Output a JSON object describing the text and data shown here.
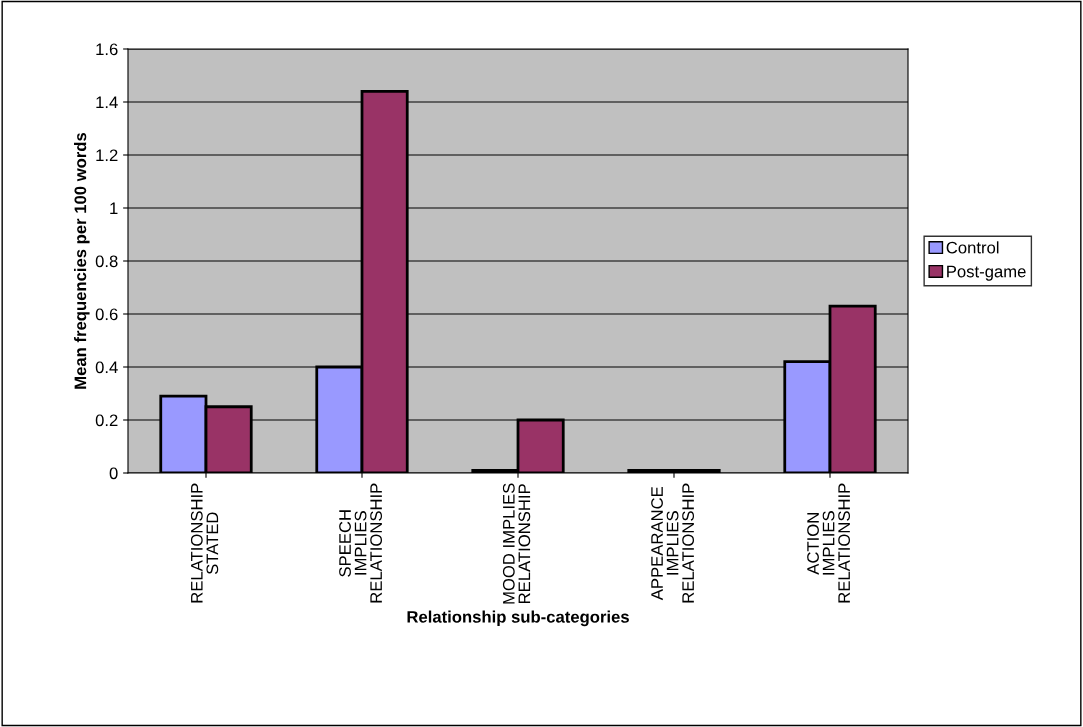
{
  "chart_data": {
    "type": "bar",
    "xlabel": "Relationship sub-categories",
    "ylabel": "Mean frequencies per 100 words",
    "categories": [
      "RELATIONSHIP\nSTATED",
      "SPEECH\nIMPLIES\nRELATIONSHIP",
      "MOOD IMPLIES\nRELATIONSHIP",
      "APPEARANCE\nIMPLIES\nRELATIONSHIP",
      "ACTION\nIMPLIES\nRELATIONSHIP"
    ],
    "series": [
      {
        "name": "Control",
        "color": "#9999ff",
        "values": [
          0.29,
          0.4,
          0.01,
          0.01,
          0.42
        ]
      },
      {
        "name": "Post-game",
        "color": "#993366",
        "values": [
          0.25,
          1.44,
          0.2,
          0.01,
          0.63
        ]
      }
    ],
    "ylim": [
      0,
      1.6
    ],
    "yticks": [
      0,
      0.2,
      0.4,
      0.6,
      0.8,
      1,
      1.2,
      1.4,
      1.6
    ],
    "grid": "y",
    "legend": "right"
  }
}
